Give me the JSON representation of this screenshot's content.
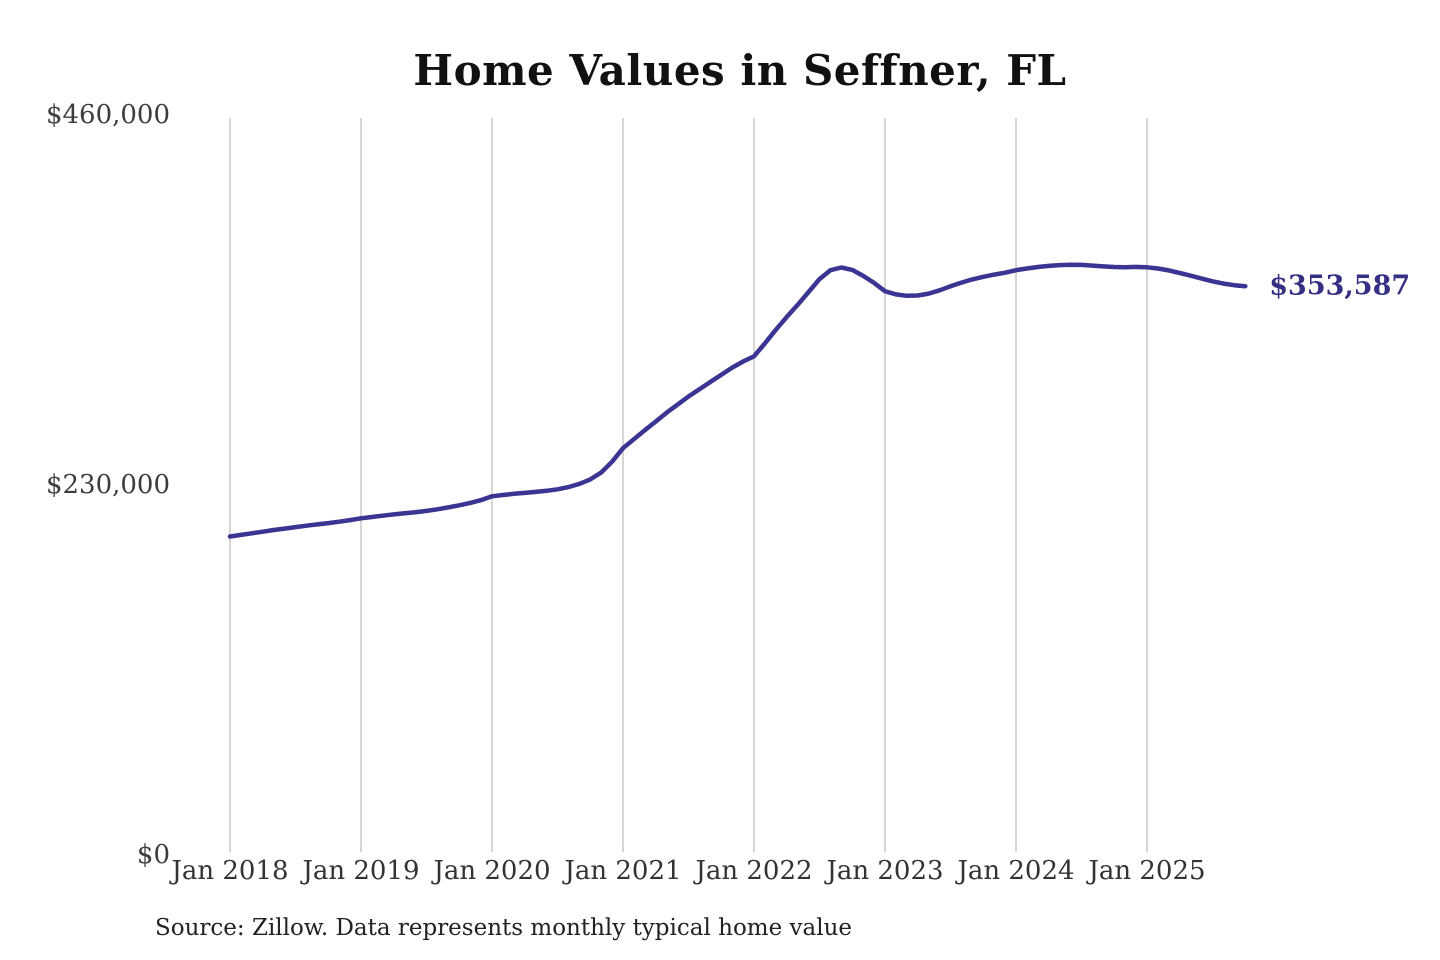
{
  "colors": {
    "line": "#3a3492",
    "end_label": "#363084",
    "gridline": "#c9c9c9",
    "title": "#111111",
    "axis_text": "#3d3d3d",
    "source_text": "#222222"
  },
  "chart_data": {
    "type": "line",
    "title": "Home Values in Seffner, FL",
    "source_note": "Source: Zillow. Data represents monthly typical home value",
    "end_label": "$353,587",
    "end_value": 353587,
    "unit": "USD",
    "grid": "vertical-only",
    "legend": "none",
    "ylim": [
      0,
      460000
    ],
    "yticks": [
      {
        "value": 0,
        "label": "$0"
      },
      {
        "value": 230000,
        "label": "$230,000"
      },
      {
        "value": 460000,
        "label": "$460,000"
      }
    ],
    "xticks": [
      "Jan 2018",
      "Jan 2019",
      "Jan 2020",
      "Jan 2021",
      "Jan 2022",
      "Jan 2023",
      "Jan 2024",
      "Jan 2025"
    ],
    "x_start": "2018-01",
    "x_end": "2025-10",
    "x_interval": "month",
    "series": [
      {
        "name": "Monthly typical home value",
        "values": [
          198000,
          199000,
          200000,
          201000,
          202000,
          202900,
          203800,
          204700,
          205500,
          206300,
          207200,
          208200,
          209300,
          210100,
          210900,
          211700,
          212400,
          213100,
          213900,
          214900,
          216100,
          217400,
          218900,
          220600,
          223000,
          223800,
          224500,
          225100,
          225700,
          226400,
          227300,
          228700,
          230700,
          233500,
          237800,
          244500,
          252900,
          258500,
          264000,
          269500,
          275000,
          280000,
          285000,
          289500,
          294000,
          298500,
          303000,
          306800,
          310000,
          318000,
          326500,
          334500,
          342000,
          350000,
          358000,
          363500,
          365200,
          363700,
          360000,
          355600,
          350500,
          348500,
          347600,
          347800,
          349000,
          351000,
          353500,
          355800,
          357800,
          359400,
          360800,
          362000,
          363500,
          364600,
          365500,
          366200,
          366700,
          366900,
          366800,
          366400,
          365900,
          365500,
          365400,
          365600,
          365300,
          364600,
          363400,
          361800,
          360100,
          358300,
          356600,
          355200,
          354200,
          353587
        ]
      }
    ]
  }
}
